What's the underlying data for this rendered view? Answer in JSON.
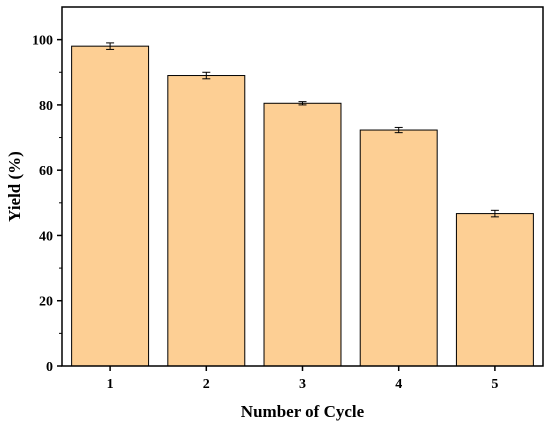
{
  "chart_data": {
    "type": "bar",
    "title": "",
    "xlabel": "Number of Cycle",
    "ylabel": "Yield (%)",
    "categories": [
      "1",
      "2",
      "3",
      "4",
      "5"
    ],
    "values": [
      98.0,
      89.0,
      80.5,
      72.3,
      46.7
    ],
    "errors": [
      1.0,
      1.0,
      0.5,
      0.8,
      1.0
    ],
    "ylim": [
      0,
      110
    ],
    "yticks": [
      0,
      20,
      40,
      60,
      80,
      100
    ],
    "grid": false,
    "bar_color": "#FDCF94",
    "edge_color": "#000000"
  }
}
